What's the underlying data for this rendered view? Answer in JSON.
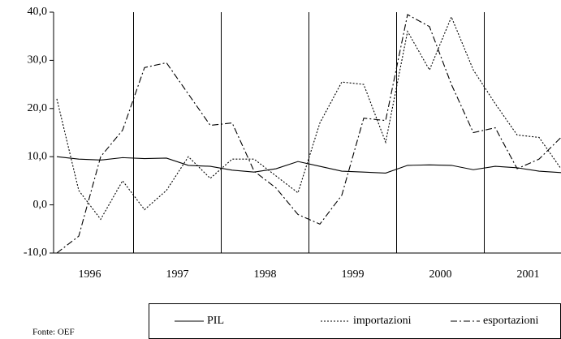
{
  "chart_data": {
    "type": "line",
    "categories": [
      "1996",
      null,
      null,
      null,
      "1997",
      null,
      null,
      null,
      "1998",
      null,
      null,
      null,
      "1999",
      null,
      null,
      null,
      "2000",
      null,
      null,
      null,
      "2001",
      null,
      null,
      null
    ],
    "series": [
      {
        "name": "PIL",
        "color": "#000000",
        "dash": "solid",
        "values": [
          10.0,
          9.5,
          9.3,
          9.8,
          9.6,
          9.7,
          8.2,
          8.0,
          7.2,
          6.8,
          7.5,
          9.0,
          8.0,
          7.0,
          6.8,
          6.6,
          8.2,
          8.3,
          8.2,
          7.3,
          8.0,
          7.7,
          7.0,
          6.7
        ]
      },
      {
        "name": "importazioni",
        "color": "#000000",
        "dash": "dotted",
        "values": [
          22.0,
          3.0,
          -3.0,
          5.0,
          -1.0,
          3.0,
          10.0,
          5.5,
          9.5,
          9.5,
          6.0,
          2.5,
          17.0,
          25.5,
          25.0,
          13.0,
          36.0,
          28.0,
          39.0,
          28.0,
          21.0,
          14.5,
          14.0,
          7.5
        ]
      },
      {
        "name": "esportazioni",
        "color": "#000000",
        "dash": "dashdot",
        "values": [
          -10.0,
          -6.5,
          10.0,
          15.5,
          28.5,
          29.5,
          23.0,
          16.5,
          17.0,
          7.0,
          3.5,
          -2.0,
          -4.0,
          2.0,
          18.0,
          17.5,
          39.5,
          37.0,
          25.0,
          15.0,
          16.0,
          7.5,
          9.5,
          14.0
        ]
      }
    ],
    "ylim": [
      -10,
      40
    ],
    "yticks": [
      {
        "value": -10,
        "label": "-10,0"
      },
      {
        "value": 0,
        "label": "0,0"
      },
      {
        "value": 10,
        "label": "10,0"
      },
      {
        "value": 20,
        "label": "20,0"
      },
      {
        "value": 30,
        "label": "30,0"
      },
      {
        "value": 40,
        "label": "40,0"
      }
    ],
    "source": "Fonte: OEF",
    "legend": "bottom"
  }
}
